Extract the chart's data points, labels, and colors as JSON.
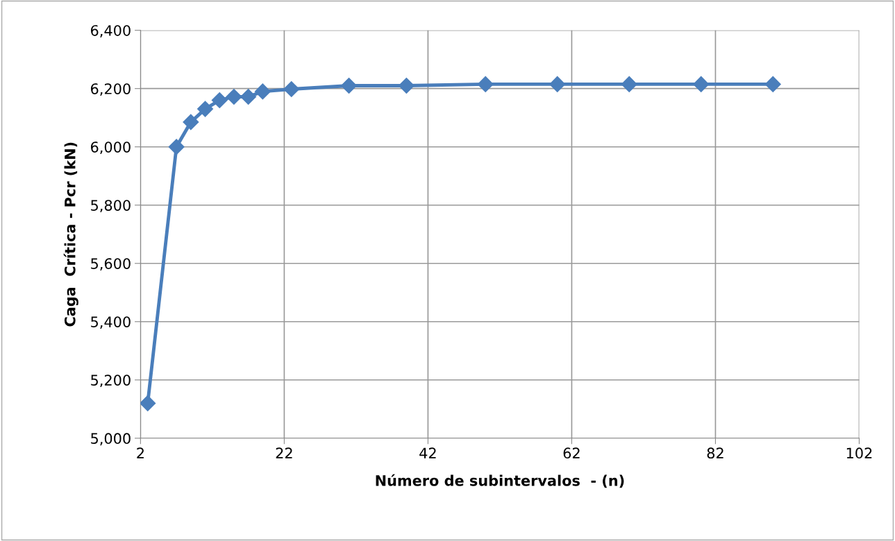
{
  "chart_data": {
    "type": "line",
    "xlabel": "Número de subintervalos  - (n)",
    "ylabel": "Caga  Crítica - Pcr (kN)",
    "x": [
      3,
      7,
      9,
      11,
      13,
      15,
      17,
      19,
      23,
      31,
      39,
      50,
      60,
      70,
      80,
      90
    ],
    "series": [
      {
        "color": "#4a7ebb",
        "values": [
          5120,
          6000,
          6085,
          6130,
          6160,
          6172,
          6172,
          6190,
          6198,
          6210,
          6210,
          6215,
          6215,
          6215,
          6215,
          6215
        ]
      }
    ],
    "xlim": [
      2,
      102
    ],
    "xticks": [
      2,
      22,
      42,
      62,
      82,
      102
    ],
    "ylim": [
      5000,
      6400
    ],
    "yticks": [
      {
        "value": 5000,
        "label": "5,000"
      },
      {
        "value": 5200,
        "label": "5,200"
      },
      {
        "value": 5400,
        "label": "5,400"
      },
      {
        "value": 5600,
        "label": "5,600"
      },
      {
        "value": 5800,
        "label": "5,800"
      },
      {
        "value": 6000,
        "label": "6,000"
      },
      {
        "value": 6200,
        "label": "6,200"
      },
      {
        "value": 6400,
        "label": "6,400"
      }
    ],
    "grid": true,
    "marker": "diamond",
    "line_style": "solid"
  }
}
